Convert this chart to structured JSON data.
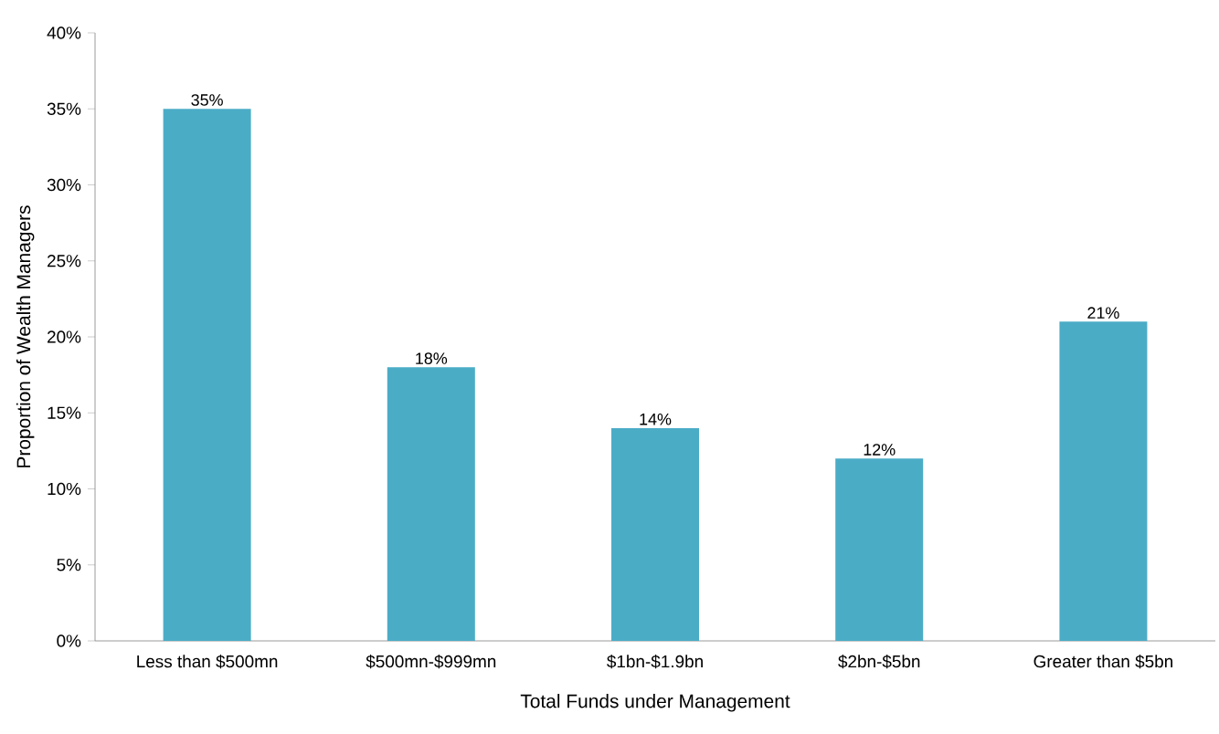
{
  "chart_data": {
    "type": "bar",
    "xlabel": "Total Funds under Management",
    "ylabel": "Proportion of Wealth Managers",
    "categories": [
      "Less than $500mn",
      "$500mn-$999mn",
      "$1bn-$1.9bn",
      "$2bn-$5bn",
      "Greater than $5bn"
    ],
    "values": [
      35,
      18,
      14,
      12,
      21
    ],
    "value_labels": [
      "35%",
      "18%",
      "14%",
      "12%",
      "21%"
    ],
    "color": "#4bacc6",
    "ylim": [
      0,
      40
    ],
    "yticks": [
      {
        "value": 0,
        "label": "0%"
      },
      {
        "value": 5,
        "label": "5%"
      },
      {
        "value": 10,
        "label": "10%"
      },
      {
        "value": 15,
        "label": "15%"
      },
      {
        "value": 20,
        "label": "20%"
      },
      {
        "value": 25,
        "label": "25%"
      },
      {
        "value": 30,
        "label": "30%"
      },
      {
        "value": 35,
        "label": "35%"
      },
      {
        "value": 40,
        "label": "40%"
      }
    ],
    "grid": false
  }
}
